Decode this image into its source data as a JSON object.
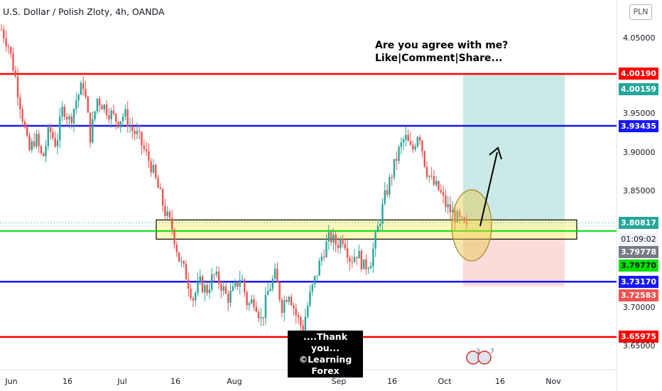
{
  "header": {
    "title": "U.S. Dollar / Polish Zloty, 4h, OANDA",
    "currency_button": "PLN"
  },
  "annotations": {
    "note_line1": "Are you agree with me?",
    "note_line2": "Like|Comment|Share...",
    "thanks_line1": "....Thank you...",
    "thanks_line2": "©Learning Forex",
    "event_count": "3",
    "event_count2": "7"
  },
  "price_tags": [
    {
      "label": "4.00190",
      "bg": "#ff0000"
    },
    {
      "label": "4.00159",
      "bg": "#26a69a"
    },
    {
      "label": "3.93435",
      "bg": "#1717ff"
    },
    {
      "label": "3.80817",
      "bg": "#26a69a"
    },
    {
      "label": "01:09:02",
      "bg": "#f0f3fa"
    },
    {
      "label": "3.79778",
      "bg": "#787b86"
    },
    {
      "label": "3.79770",
      "bg": "#00e000"
    },
    {
      "label": "3.73170",
      "bg": "#1717ff"
    },
    {
      "label": "3.72583",
      "bg": "#ef5350"
    },
    {
      "label": "3.65975",
      "bg": "#ff0000"
    }
  ],
  "chart_data": {
    "type": "candlestick",
    "title": "U.S. Dollar / Polish Zloty, 4h, OANDA",
    "y_axis": {
      "ticks": [
        "4.05000",
        "3.95000",
        "3.90000",
        "3.85000",
        "3.70000",
        "3.65000"
      ],
      "range": [
        3.63,
        4.08
      ]
    },
    "x_axis": {
      "ticks": [
        "Jun",
        "16",
        "Jul",
        "16",
        "Aug",
        "Sep",
        "16",
        "Oct",
        "16",
        "Nov"
      ]
    },
    "horizontal_lines": [
      {
        "price": 4.0019,
        "color": "#ff0000"
      },
      {
        "price": 3.93435,
        "color": "#1717ff"
      },
      {
        "price": 3.7977,
        "color": "#00e000"
      },
      {
        "price": 3.7317,
        "color": "#1717ff"
      },
      {
        "price": 3.65975,
        "color": "#ff0000"
      }
    ],
    "support_zone": {
      "top": 3.812,
      "bottom": 3.787,
      "color": "#fff9a8"
    },
    "long_position": {
      "entry": 3.79778,
      "target": 4.00159,
      "stop": 3.72583
    },
    "price_path": [
      [
        4.06,
        4.04,
        4.0,
        3.95,
        3.9,
        3.92,
        3.89,
        3.93,
        3.91,
        3.96,
        3.94,
        3.97,
        3.99,
        3.92,
        3.97,
        3.96,
        3.95,
        3.94,
        3.95,
        3.93,
        3.92,
        3.9,
        3.88,
        3.85,
        3.82,
        3.8,
        3.76,
        3.74,
        3.71,
        3.73,
        3.72,
        3.74,
        3.73,
        3.71,
        3.72,
        3.74,
        3.7,
        3.71,
        3.68,
        3.72,
        3.74,
        3.7,
        3.72,
        3.69,
        3.67,
        3.71,
        3.74,
        3.77,
        3.79,
        3.78,
        3.79,
        3.76,
        3.77,
        3.75,
        3.76,
        3.8,
        3.84,
        3.87,
        3.9,
        3.92,
        3.9,
        3.93,
        3.88,
        3.86,
        3.85,
        3.83,
        3.82,
        3.81,
        3.8
      ]
    ]
  }
}
